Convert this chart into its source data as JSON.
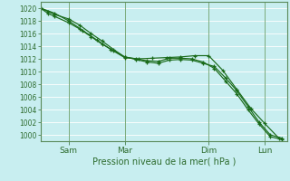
{
  "xlabel": "Pression niveau de la mer( hPa )",
  "background_color": "#c8eef0",
  "grid_color": "#b0d8da",
  "line_color": "#1a6b1a",
  "tick_color": "#2d6b2d",
  "spine_color": "#5a8a5a",
  "vline_color": "#7aaa7a",
  "ylim": [
    999.0,
    1021.0
  ],
  "yticks": [
    1000,
    1002,
    1004,
    1006,
    1008,
    1010,
    1012,
    1014,
    1016,
    1018,
    1020
  ],
  "x_tick_labels": [
    "Sam",
    "Mar",
    "Dim",
    "Lun"
  ],
  "x_tick_positions": [
    1,
    3,
    6,
    8
  ],
  "xlim": [
    0,
    8.8
  ],
  "series": [
    {
      "x": [
        0,
        0.25,
        0.5,
        1.0,
        1.4,
        1.8,
        2.2,
        2.6,
        3.0,
        3.4,
        3.8,
        4.2,
        4.6,
        5.0,
        5.4,
        5.8,
        6.2,
        6.6,
        7.0,
        7.4,
        7.8,
        8.2,
        8.6
      ],
      "y": [
        1020,
        1019.2,
        1018.7,
        1017.7,
        1016.7,
        1015.5,
        1014.3,
        1013.3,
        1012.3,
        1012.0,
        1011.7,
        1011.6,
        1012.1,
        1012.1,
        1012.0,
        1011.5,
        1010.5,
        1008.5,
        1006.5,
        1004.0,
        1001.7,
        999.7,
        999.3
      ],
      "marker": "+"
    },
    {
      "x": [
        0,
        0.25,
        0.5,
        1.0,
        1.4,
        1.8,
        2.2,
        2.6,
        3.0,
        3.4,
        3.8,
        4.2,
        4.6,
        5.0,
        5.4,
        5.8,
        6.2,
        6.6,
        7.0,
        7.4,
        7.8,
        8.2,
        8.6
      ],
      "y": [
        1020,
        1019.5,
        1019.0,
        1018.3,
        1017.3,
        1016.0,
        1014.8,
        1013.5,
        1012.3,
        1011.9,
        1011.5,
        1011.3,
        1011.8,
        1011.9,
        1011.8,
        1011.3,
        1010.8,
        1009.0,
        1007.0,
        1004.5,
        1002.0,
        1000.0,
        999.5
      ],
      "marker": "+"
    },
    {
      "x": [
        0,
        0.5,
        1.0,
        1.5,
        2.0,
        2.5,
        3.0,
        3.5,
        4.0,
        4.5,
        5.0,
        5.5,
        6.0,
        6.5,
        7.0,
        7.5,
        8.0,
        8.5
      ],
      "y": [
        1020,
        1019.2,
        1018.0,
        1016.5,
        1015.0,
        1013.5,
        1012.2,
        1012.0,
        1012.1,
        1012.2,
        1012.3,
        1012.5,
        1012.5,
        1010.2,
        1007.2,
        1004.2,
        1001.8,
        999.5
      ],
      "marker": "+"
    }
  ]
}
